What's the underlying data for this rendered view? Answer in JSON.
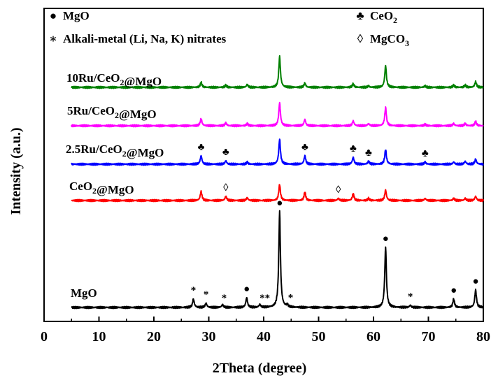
{
  "chart_data": {
    "type": "line",
    "title": "",
    "xlabel": "2Theta (degree)",
    "ylabel": "Intensity (a.u.)",
    "xlim": [
      0,
      80
    ],
    "xticks": [
      0,
      10,
      20,
      30,
      40,
      50,
      60,
      70,
      80
    ],
    "y_ticks_labeled": false,
    "grid": false,
    "legend": {
      "placement": "top",
      "entries": [
        {
          "symbol": "●",
          "label": "MgO"
        },
        {
          "symbol": "♣",
          "label": "CeO",
          "sub": "2"
        },
        {
          "symbol": "∗",
          "label": "Alkali-metal (Li, Na, K) nitrates"
        },
        {
          "symbol": "◊",
          "label": "MgCO",
          "sub": "3"
        }
      ]
    },
    "series": [
      {
        "name": "MgO",
        "label_parts": [
          [
            "MgO",
            ""
          ]
        ],
        "color": "#000000",
        "baseline": 0,
        "peaks": [
          [
            27.2,
            12
          ],
          [
            29.5,
            6
          ],
          [
            32.5,
            4
          ],
          [
            36.9,
            14
          ],
          [
            39.3,
            4
          ],
          [
            42.9,
            137
          ],
          [
            44.3,
            3
          ],
          [
            62.2,
            86
          ],
          [
            66.7,
            3
          ],
          [
            74.6,
            12
          ],
          [
            78.6,
            25
          ]
        ],
        "markers": [
          {
            "x": 27.2,
            "s": "*"
          },
          {
            "x": 29.5,
            "s": "*"
          },
          {
            "x": 32.8,
            "s": "*"
          },
          {
            "x": 36.9,
            "s": "●"
          },
          {
            "x": 40.2,
            "s": "**"
          },
          {
            "x": 42.9,
            "s": "●"
          },
          {
            "x": 44.9,
            "s": "*"
          },
          {
            "x": 62.2,
            "s": "●"
          },
          {
            "x": 66.7,
            "s": "*"
          },
          {
            "x": 74.6,
            "s": "●"
          },
          {
            "x": 78.6,
            "s": "●"
          }
        ]
      },
      {
        "name": "CeO2@MgO",
        "label_parts": [
          [
            "CeO",
            ""
          ],
          [
            "2",
            "sub"
          ],
          [
            "@MgO",
            ""
          ]
        ],
        "color": "#ff0000",
        "baseline": 153,
        "peaks": [
          [
            28.6,
            13
          ],
          [
            33.1,
            6
          ],
          [
            37.0,
            4
          ],
          [
            42.9,
            23
          ],
          [
            47.5,
            12
          ],
          [
            53.6,
            3
          ],
          [
            56.3,
            10
          ],
          [
            59.1,
            3
          ],
          [
            62.2,
            15
          ],
          [
            69.4,
            3
          ],
          [
            74.6,
            3
          ],
          [
            76.7,
            3
          ],
          [
            78.6,
            6
          ]
        ],
        "markers": [
          {
            "x": 33.1,
            "s": "◊"
          },
          {
            "x": 53.6,
            "s": "◊"
          }
        ]
      },
      {
        "name": "2.5Ru/CeO2@MgO",
        "label_parts": [
          [
            "2.5Ru/CeO",
            ""
          ],
          [
            "2",
            "sub"
          ],
          [
            "@MgO",
            ""
          ]
        ],
        "color": "#0000ff",
        "baseline": 205,
        "peaks": [
          [
            28.6,
            12
          ],
          [
            33.1,
            5
          ],
          [
            37.0,
            3
          ],
          [
            42.9,
            36
          ],
          [
            47.5,
            12
          ],
          [
            56.3,
            10
          ],
          [
            59.1,
            4
          ],
          [
            62.2,
            21
          ],
          [
            69.4,
            3
          ],
          [
            74.6,
            3
          ],
          [
            76.7,
            4
          ],
          [
            78.6,
            7
          ]
        ],
        "markers": [
          {
            "x": 28.6,
            "s": "♣"
          },
          {
            "x": 33.1,
            "s": "♣"
          },
          {
            "x": 47.5,
            "s": "♣"
          },
          {
            "x": 56.3,
            "s": "♣"
          },
          {
            "x": 59.1,
            "s": "♣"
          },
          {
            "x": 69.4,
            "s": "♣"
          }
        ]
      },
      {
        "name": "5Ru/CeO2@MgO",
        "label_parts": [
          [
            "5Ru/CeO",
            ""
          ],
          [
            "2",
            "sub"
          ],
          [
            "@MgO",
            ""
          ]
        ],
        "color": "#ff00ff",
        "baseline": 260,
        "peaks": [
          [
            28.6,
            10
          ],
          [
            33.1,
            4
          ],
          [
            37.0,
            3
          ],
          [
            42.9,
            33
          ],
          [
            47.5,
            9
          ],
          [
            56.3,
            7
          ],
          [
            59.1,
            3
          ],
          [
            62.2,
            26
          ],
          [
            69.4,
            2
          ],
          [
            74.6,
            3
          ],
          [
            76.7,
            3
          ],
          [
            78.6,
            6
          ]
        ],
        "markers": []
      },
      {
        "name": "10Ru/CeO2@MgO",
        "label_parts": [
          [
            "10Ru/CeO",
            ""
          ],
          [
            "2",
            "sub"
          ],
          [
            "@MgO",
            ""
          ]
        ],
        "color": "#008000",
        "baseline": 315,
        "peaks": [
          [
            28.6,
            7
          ],
          [
            33.1,
            3
          ],
          [
            37.0,
            4
          ],
          [
            42.9,
            44
          ],
          [
            47.5,
            6
          ],
          [
            56.3,
            5
          ],
          [
            59.1,
            2
          ],
          [
            62.2,
            31
          ],
          [
            69.4,
            2
          ],
          [
            74.6,
            3
          ],
          [
            76.7,
            3
          ],
          [
            78.6,
            8
          ]
        ],
        "markers": []
      }
    ]
  }
}
